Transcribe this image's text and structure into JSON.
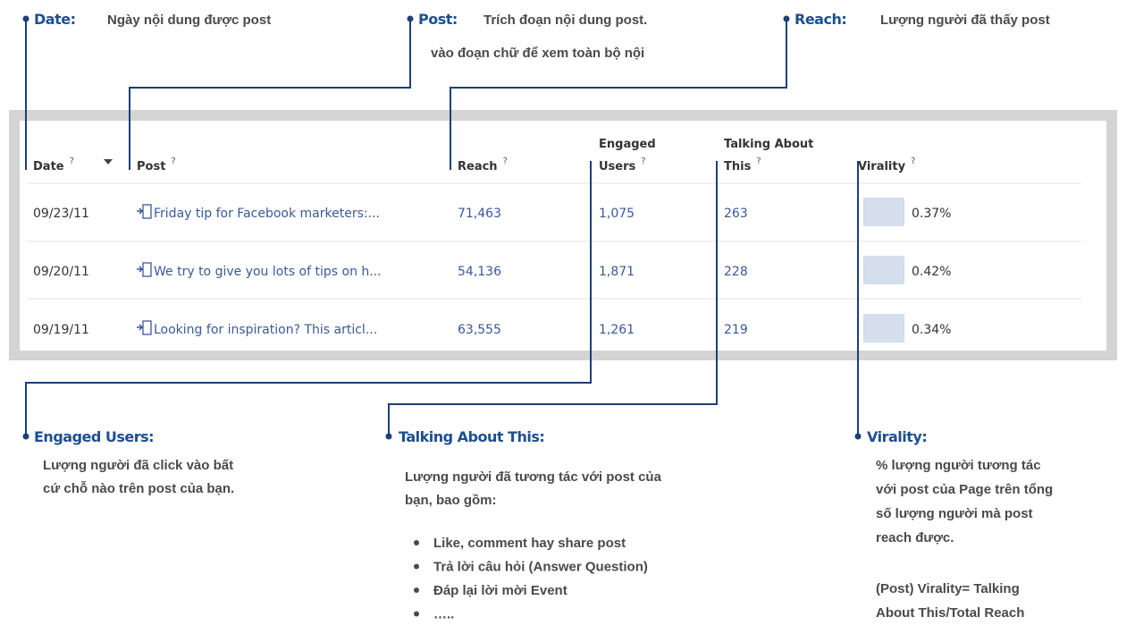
{
  "annotations": {
    "date": {
      "label": "Date:",
      "text": [
        "Ngày nội dung được post"
      ]
    },
    "post": {
      "label": "Post:",
      "text": [
        "Trích đoạn nội dung post.",
        "vào đoạn chữ để xem toàn bộ nội"
      ]
    },
    "reach": {
      "label": "Reach:",
      "text": [
        "Lượng người đã thấy post"
      ]
    },
    "engaged": {
      "label": "Engaged Users:",
      "text": [
        "Lượng người đã click vào bất",
        "cứ chỗ nào trên post của bạn."
      ]
    },
    "talking": {
      "label": "Talking About This:",
      "text": [
        "Lượng người đã tương tác với post của",
        "bạn, bao gồm:"
      ],
      "items": [
        "Like, comment hay share post",
        "Trả lời câu hỏi (Answer Question)",
        "Đáp lại lời mời Event",
        "….."
      ]
    },
    "virality": {
      "label": "Virality:",
      "text": [
        "% lượng người tương tác",
        "với post của Page trên tổng",
        "số lượng người mà post",
        "reach được."
      ],
      "formula": [
        "(Post) Virality= Talking",
        "About This/Total Reach"
      ]
    }
  },
  "table": {
    "help": "?",
    "headers": [
      [
        "Date"
      ],
      [
        "Post"
      ],
      [
        "Reach"
      ],
      [
        "Engaged",
        "Users"
      ],
      [
        "Talking About",
        "This"
      ],
      [
        "Virality"
      ]
    ],
    "rows": [
      [
        "09/23/11",
        "Friday tip for Facebook marketers:...",
        "71,463",
        "1,075",
        "263",
        "0.37%"
      ],
      [
        "09/20/11",
        "We try to give you lots of tips on h...",
        "54,136",
        "1,871",
        "228",
        "0.42%"
      ],
      [
        "09/19/11",
        "Looking for inspiration? This articl...",
        "63,555",
        "1,261",
        "219",
        "0.34%"
      ]
    ]
  }
}
